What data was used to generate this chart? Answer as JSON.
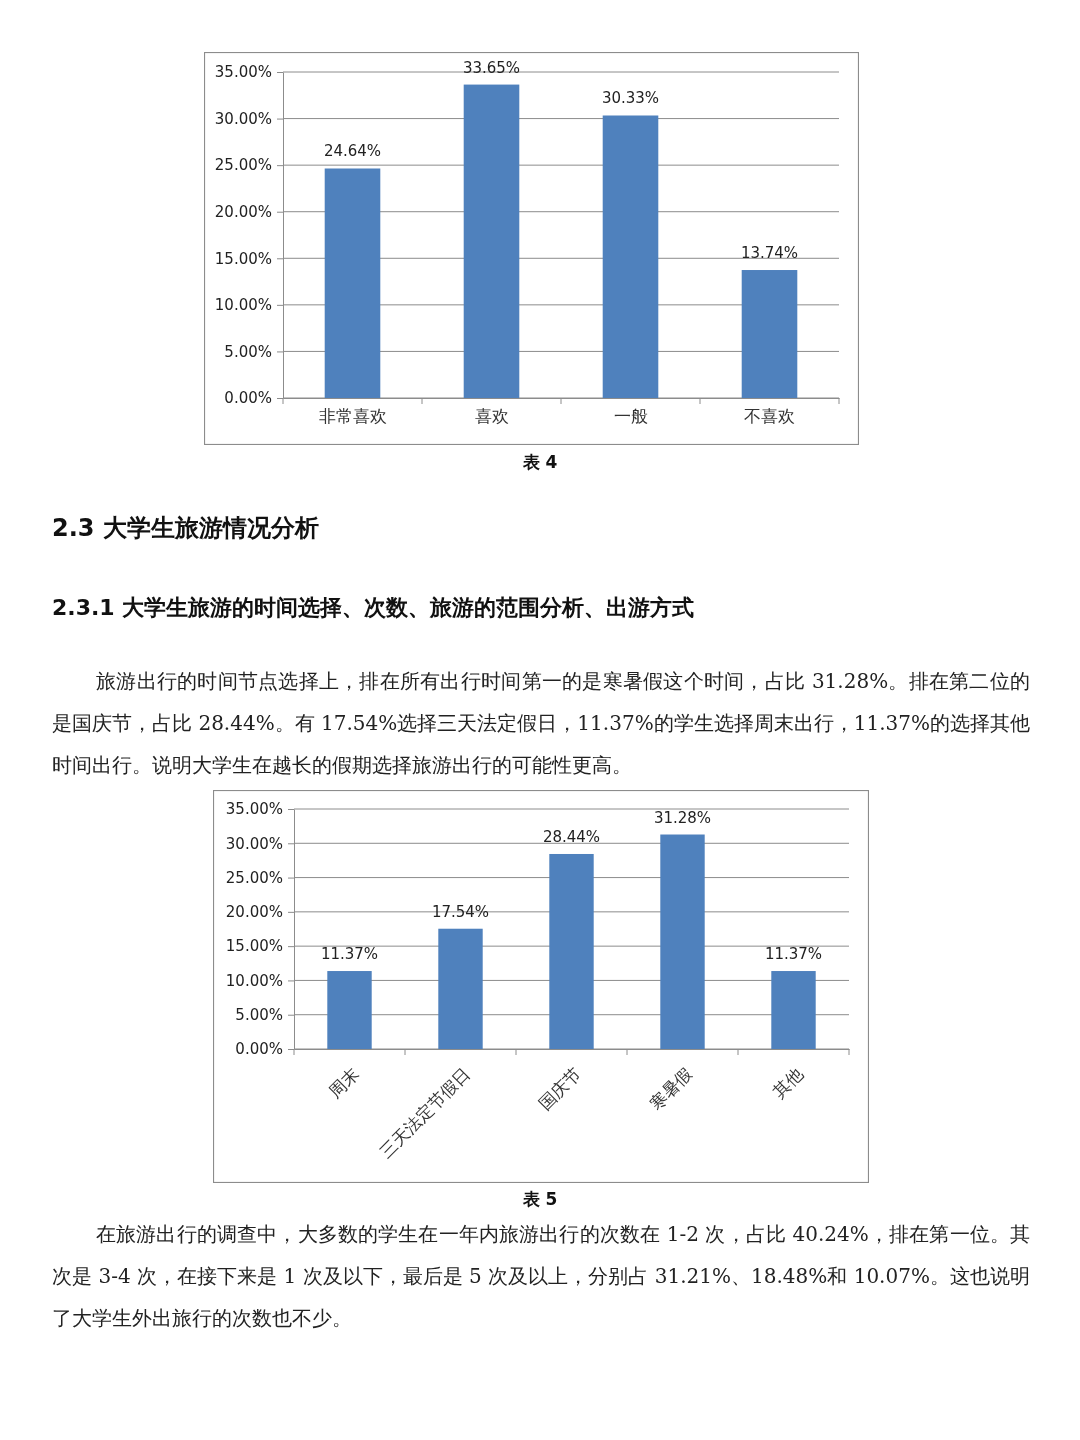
{
  "chart_data": [
    {
      "type": "bar",
      "categories": [
        "非常喜欢",
        "喜欢",
        "一般",
        "不喜欢"
      ],
      "values": [
        24.64,
        33.65,
        30.33,
        13.74
      ],
      "value_labels": [
        "24.64%",
        "33.65%",
        "30.33%",
        "13.74%"
      ],
      "color": "#4f81bd",
      "ylim": [
        0,
        35
      ],
      "yticks": [
        {
          "value": 0,
          "label": "0.00%"
        },
        {
          "value": 5,
          "label": "5.00%"
        },
        {
          "value": 10,
          "label": "10.00%"
        },
        {
          "value": 15,
          "label": "15.00%"
        },
        {
          "value": 20,
          "label": "20.00%"
        },
        {
          "value": 25,
          "label": "25.00%"
        },
        {
          "value": 30,
          "label": "30.00%"
        },
        {
          "value": 35,
          "label": "35.00%"
        }
      ],
      "grid": "y",
      "annotations": [
        "表 4"
      ]
    },
    {
      "type": "bar",
      "title": "2.3 大学生旅游情况分析",
      "subtitle": "2.3.1 大学生旅游的时间选择、次数、旅游的范围分析、出游方式",
      "categories": [
        "周末",
        "三天法定节假日",
        "国庆节",
        "寒暑假",
        "其他"
      ],
      "values": [
        11.37,
        17.54,
        28.44,
        31.28,
        11.37
      ],
      "value_labels": [
        "11.37%",
        "17.54%",
        "28.44%",
        "31.28%",
        "11.37%"
      ],
      "color": "#4f81bd",
      "ylim": [
        0,
        35
      ],
      "yticks": [
        {
          "value": 0,
          "label": "0.00%"
        },
        {
          "value": 5,
          "label": "5.00%"
        },
        {
          "value": 10,
          "label": "10.00%"
        },
        {
          "value": 15,
          "label": "15.00%"
        },
        {
          "value": 20,
          "label": "20.00%"
        },
        {
          "value": 25,
          "label": "25.00%"
        },
        {
          "value": 30,
          "label": "30.00%"
        },
        {
          "value": 35,
          "label": "35.00%"
        }
      ],
      "grid": "y",
      "annotations": [
        "旅游出行的时间节点选择上，排在所有出行时间第一的是寒暑假这个时间，占比 31.28%。排在第二位的是国庆节，占比 28.44%。有 17.54%选择三天法定假日，11.37%的学生选择周末出行，11.37%的选择其他时间出行。说明大学生在越长的假期选择旅游出行的可能性更高。",
        "表 5",
        "在旅游出行的调查中，大多数的学生在一年内旅游出行的次数在 1-2 次，占比 40.24%，排在第一位。其次是 3-4 次，在接下来是 1 次及以下，最后是 5 次及以上，分别占 31.21%、18.48%和 10.07%。这也说明了大学生外出旅行的次数也不少。"
      ]
    }
  ]
}
